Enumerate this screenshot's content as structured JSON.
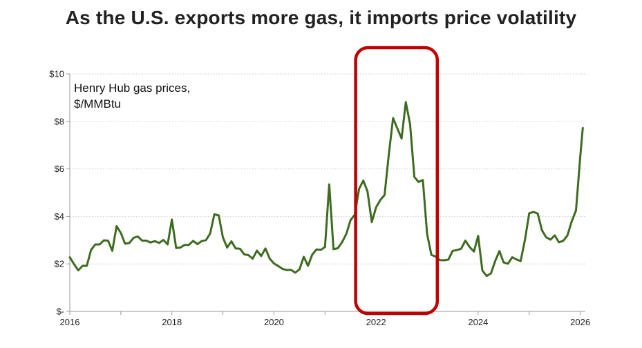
{
  "chart_data": {
    "type": "line",
    "title": "As the U.S. exports more gas, it imports price volatility",
    "annotation_lines": [
      "Henry Hub gas prices,",
      "$/MMBtu"
    ],
    "xlabel": "",
    "ylabel": "",
    "xlim": [
      2016,
      2026.1
    ],
    "ylim": [
      0,
      10
    ],
    "x_ticks": [
      2016,
      2018,
      2020,
      2022,
      2024,
      2026
    ],
    "x_tick_labels": [
      "2016",
      "2018",
      "2020",
      "2022",
      "2024",
      "2026"
    ],
    "y_ticks": [
      0,
      2,
      4,
      6,
      8,
      10
    ],
    "y_tick_labels": [
      "$-",
      "$2",
      "$4",
      "$6",
      "$8",
      "$10"
    ],
    "grid": "horizontal dotted",
    "highlight_range": [
      2021.6,
      2023.2
    ],
    "colors": {
      "line": "#3d6b1f",
      "highlight": "#c00000",
      "grid": "#c8c8c8",
      "axis": "#9a9a9a"
    },
    "series": [
      {
        "name": "Henry Hub gas prices",
        "x": [
          2016.0,
          2016.083,
          2016.167,
          2016.25,
          2016.333,
          2016.417,
          2016.5,
          2016.583,
          2016.667,
          2016.75,
          2016.833,
          2016.917,
          2017.0,
          2017.083,
          2017.167,
          2017.25,
          2017.333,
          2017.417,
          2017.5,
          2017.583,
          2017.667,
          2017.75,
          2017.833,
          2017.917,
          2018.0,
          2018.083,
          2018.167,
          2018.25,
          2018.333,
          2018.417,
          2018.5,
          2018.583,
          2018.667,
          2018.75,
          2018.833,
          2018.917,
          2019.0,
          2019.083,
          2019.167,
          2019.25,
          2019.333,
          2019.417,
          2019.5,
          2019.583,
          2019.667,
          2019.75,
          2019.833,
          2019.917,
          2020.0,
          2020.083,
          2020.167,
          2020.25,
          2020.333,
          2020.417,
          2020.5,
          2020.583,
          2020.667,
          2020.75,
          2020.833,
          2020.917,
          2021.0,
          2021.083,
          2021.167,
          2021.25,
          2021.333,
          2021.417,
          2021.5,
          2021.583,
          2021.667,
          2021.75,
          2021.833,
          2021.917,
          2022.0,
          2022.083,
          2022.167,
          2022.25,
          2022.333,
          2022.417,
          2022.5,
          2022.583,
          2022.667,
          2022.75,
          2022.833,
          2022.917,
          2023.0,
          2023.083,
          2023.167,
          2023.25,
          2023.333,
          2023.417,
          2023.5,
          2023.583,
          2023.667,
          2023.75,
          2023.833,
          2023.917,
          2024.0,
          2024.083,
          2024.167,
          2024.25,
          2024.333,
          2024.417,
          2024.5,
          2024.583,
          2024.667,
          2024.75,
          2024.833,
          2024.917,
          2025.0,
          2025.083,
          2025.167,
          2025.25,
          2025.333,
          2025.417,
          2025.5,
          2025.583,
          2025.667,
          2025.75,
          2025.833,
          2025.917,
          2026.0,
          2026.05
        ],
        "values": [
          2.28,
          1.99,
          1.73,
          1.92,
          1.92,
          2.59,
          2.82,
          2.82,
          2.99,
          2.98,
          2.55,
          3.59,
          3.3,
          2.85,
          2.88,
          3.1,
          3.15,
          2.98,
          2.98,
          2.9,
          2.96,
          2.88,
          3.01,
          2.82,
          3.87,
          2.67,
          2.69,
          2.8,
          2.8,
          2.97,
          2.83,
          2.96,
          3.0,
          3.28,
          4.09,
          4.04,
          3.11,
          2.69,
          2.95,
          2.65,
          2.64,
          2.4,
          2.37,
          2.22,
          2.56,
          2.33,
          2.65,
          2.22,
          2.02,
          1.91,
          1.79,
          1.74,
          1.75,
          1.63,
          1.77,
          2.3,
          1.92,
          2.39,
          2.61,
          2.59,
          2.71,
          5.35,
          2.62,
          2.66,
          2.91,
          3.26,
          3.84,
          4.07,
          5.16,
          5.51,
          5.05,
          3.76,
          4.38,
          4.69,
          4.9,
          6.6,
          8.14,
          7.7,
          7.28,
          8.81,
          7.88,
          5.66,
          5.45,
          5.53,
          3.27,
          2.38,
          2.31,
          2.16,
          2.15,
          2.18,
          2.55,
          2.58,
          2.64,
          2.98,
          2.71,
          2.52,
          3.18,
          1.72,
          1.49,
          1.6,
          2.12,
          2.54,
          2.06,
          2.01,
          2.28,
          2.19,
          2.12,
          3.01,
          4.13,
          4.19,
          4.12,
          3.42,
          3.12,
          3.02,
          3.2,
          2.91,
          2.97,
          3.2,
          3.79,
          4.25,
          6.5,
          7.72
        ]
      }
    ]
  }
}
